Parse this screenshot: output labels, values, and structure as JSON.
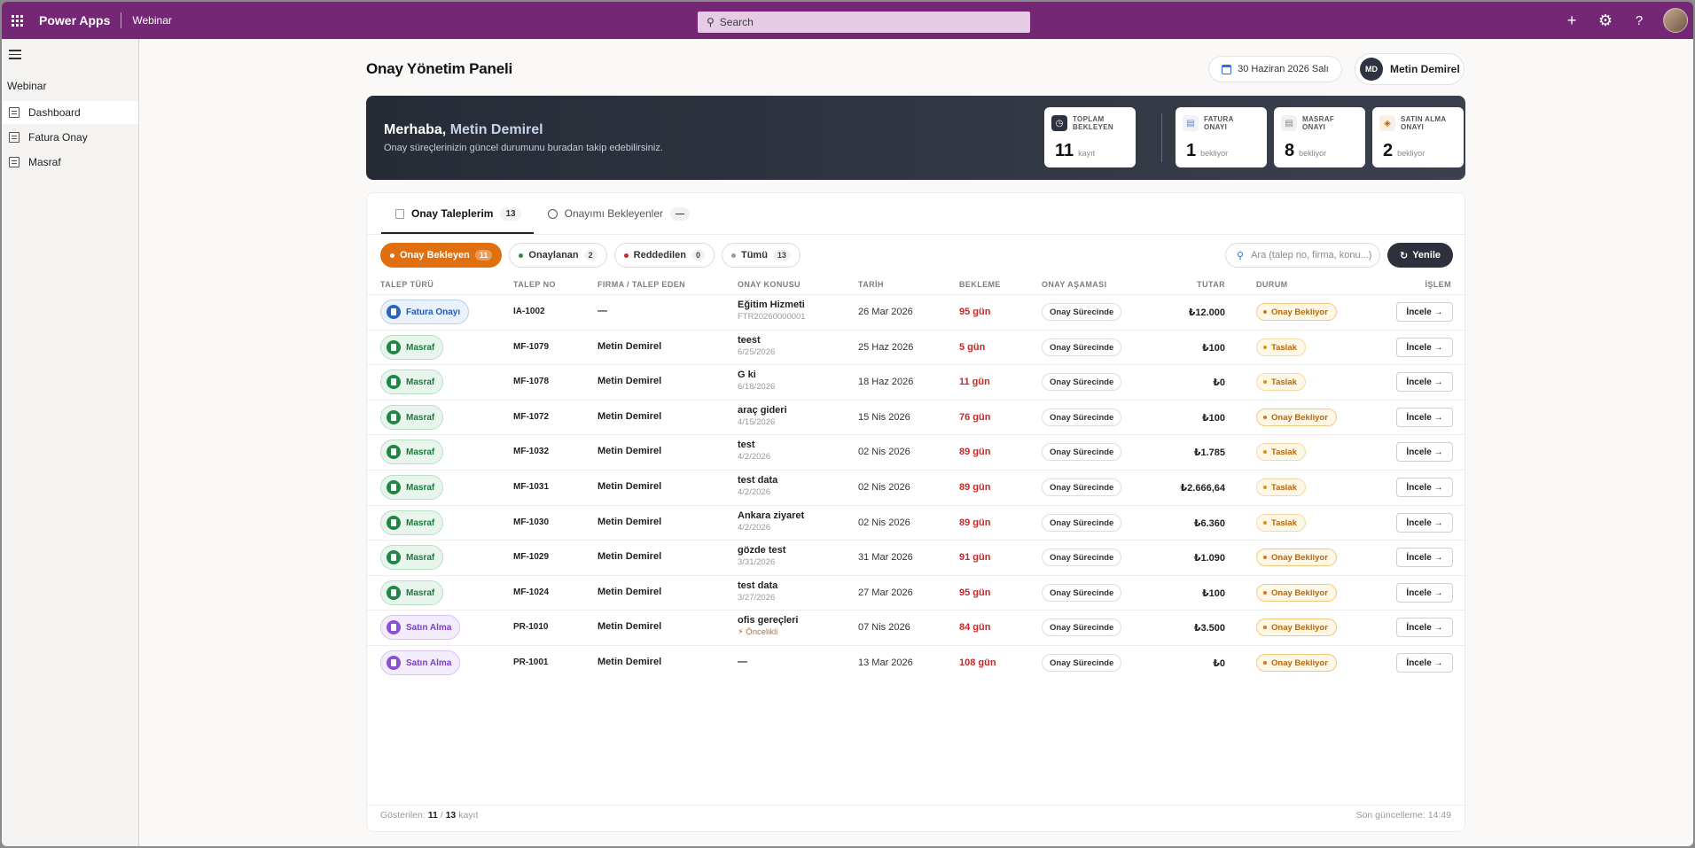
{
  "topbar": {
    "app_name": "Power Apps",
    "env_name": "Webinar",
    "search_placeholder": "Search",
    "icons": [
      "waffle-icon",
      "plus-icon",
      "gear-icon",
      "help-icon",
      "user-avatar"
    ]
  },
  "leftnav": {
    "group": "Webinar",
    "items": [
      {
        "label": "Dashboard",
        "active": true
      },
      {
        "label": "Fatura Onay",
        "active": false
      },
      {
        "label": "Masraf",
        "active": false
      }
    ]
  },
  "header": {
    "title": "Onay Yönetim Paneli",
    "date": "30 Haziran 2026 Salı",
    "user_initials": "MD",
    "user_name": "Metin Demirel"
  },
  "hero": {
    "greeting_prefix": "Merhaba,",
    "greeting_name": "Metin Demirel",
    "subtitle": "Onay süreçlerinizin güncel durumunu buradan takip edebilirsiniz.",
    "stats": [
      {
        "label1": "TOPLAM",
        "label2": "BEKLEYEN",
        "value": "11",
        "unit": "kayıt"
      },
      {
        "label1": "FATURA",
        "label2": "ONAYI",
        "value": "1",
        "unit": "bekliyor"
      },
      {
        "label1": "MASRAF",
        "label2": "ONAYI",
        "value": "8",
        "unit": "bekliyor"
      },
      {
        "label1": "SATIN ALMA",
        "label2": "ONAYI",
        "value": "2",
        "unit": "bekliyor"
      }
    ]
  },
  "tabs": [
    {
      "label": "Onay Taleplerim",
      "count": "13",
      "active": true
    },
    {
      "label": "Onayımı Bekleyenler",
      "count": "—",
      "active": false
    }
  ],
  "filters": [
    {
      "label": "Onay Bekleyen",
      "count": "11",
      "active": true,
      "color": "#e0700f"
    },
    {
      "label": "Onaylanan",
      "count": "2",
      "active": false,
      "color": "#2e8b3e"
    },
    {
      "label": "Reddedilen",
      "count": "0",
      "active": false,
      "color": "#c62828"
    },
    {
      "label": "Tümü",
      "count": "13",
      "active": false,
      "color": "#9a9a9a"
    }
  ],
  "search_placeholder": "Ara (talep no, firma, konu...)",
  "refresh_label": "Yenile",
  "columns": [
    "TALEP TÜRÜ",
    "TALEP NO",
    "FIRMA / TALEP EDEN",
    "ONAY KONUSU",
    "TARİH",
    "BEKLEME",
    "ONAY AŞAMASI",
    "TUTAR",
    "DURUM",
    "İŞLEM"
  ],
  "rows": [
    {
      "type": "Fatura Onayı",
      "kind": "fatura",
      "no": "IA-1002",
      "firma": "—",
      "konu": "Eğitim Hizmeti",
      "konu_sub": "FTR20260000001",
      "tarih": "26 Mar 2026",
      "bekleme": "95 gün",
      "asama": "Onay Sürecinde",
      "tutar": "₺12.000",
      "durum": "Onay Bekliyor",
      "durum_kind": "bekliyor",
      "action": "İncele →"
    },
    {
      "type": "Masraf",
      "kind": "masraf",
      "no": "MF-1079",
      "firma": "Metin Demirel",
      "konu": "teest",
      "konu_sub": "6/25/2026",
      "tarih": "25 Haz 2026",
      "bekleme": "5 gün",
      "asama": "Onay Sürecinde",
      "tutar": "₺100",
      "durum": "Taslak",
      "durum_kind": "taslak",
      "action": "İncele →"
    },
    {
      "type": "Masraf",
      "kind": "masraf",
      "no": "MF-1078",
      "firma": "Metin Demirel",
      "konu": "G ki",
      "konu_sub": "6/18/2026",
      "tarih": "18 Haz 2026",
      "bekleme": "11 gün",
      "asama": "Onay Sürecinde",
      "tutar": "₺0",
      "durum": "Taslak",
      "durum_kind": "taslak",
      "action": "İncele →"
    },
    {
      "type": "Masraf",
      "kind": "masraf",
      "no": "MF-1072",
      "firma": "Metin Demirel",
      "konu": "araç gideri",
      "konu_sub": "4/15/2026",
      "tarih": "15 Nis 2026",
      "bekleme": "76 gün",
      "asama": "Onay Sürecinde",
      "tutar": "₺100",
      "durum": "Onay Bekliyor",
      "durum_kind": "bekliyor",
      "action": "İncele →"
    },
    {
      "type": "Masraf",
      "kind": "masraf",
      "no": "MF-1032",
      "firma": "Metin Demirel",
      "konu": "test",
      "konu_sub": "4/2/2026",
      "tarih": "02 Nis 2026",
      "bekleme": "89 gün",
      "asama": "Onay Sürecinde",
      "tutar": "₺1.785",
      "durum": "Taslak",
      "durum_kind": "taslak",
      "action": "İncele →"
    },
    {
      "type": "Masraf",
      "kind": "masraf",
      "no": "MF-1031",
      "firma": "Metin Demirel",
      "konu": "test data",
      "konu_sub": "4/2/2026",
      "tarih": "02 Nis 2026",
      "bekleme": "89 gün",
      "asama": "Onay Sürecinde",
      "tutar": "₺2.666,64",
      "durum": "Taslak",
      "durum_kind": "taslak",
      "action": "İncele →"
    },
    {
      "type": "Masraf",
      "kind": "masraf",
      "no": "MF-1030",
      "firma": "Metin Demirel",
      "konu": "Ankara ziyaret",
      "konu_sub": "4/2/2026",
      "tarih": "02 Nis 2026",
      "bekleme": "89 gün",
      "asama": "Onay Sürecinde",
      "tutar": "₺6.360",
      "durum": "Taslak",
      "durum_kind": "taslak",
      "action": "İncele →"
    },
    {
      "type": "Masraf",
      "kind": "masraf",
      "no": "MF-1029",
      "firma": "Metin Demirel",
      "konu": "gözde test",
      "konu_sub": "3/31/2026",
      "tarih": "31 Mar 2026",
      "bekleme": "91 gün",
      "asama": "Onay Sürecinde",
      "tutar": "₺1.090",
      "durum": "Onay Bekliyor",
      "durum_kind": "bekliyor",
      "action": "İncele →"
    },
    {
      "type": "Masraf",
      "kind": "masraf",
      "no": "MF-1024",
      "firma": "Metin Demirel",
      "konu": "test data",
      "konu_sub": "3/27/2026",
      "tarih": "27 Mar 2026",
      "bekleme": "95 gün",
      "asama": "Onay Sürecinde",
      "tutar": "₺100",
      "durum": "Onay Bekliyor",
      "durum_kind": "bekliyor",
      "action": "İncele →"
    },
    {
      "type": "Satın Alma",
      "kind": "satin",
      "no": "PR-1010",
      "firma": "Metin Demirel",
      "konu": "ofis gereçleri",
      "konu_sub": "⚡ Öncelikli",
      "konu_sub_priority": true,
      "tarih": "07 Nis 2026",
      "bekleme": "84 gün",
      "asama": "Onay Sürecinde",
      "tutar": "₺3.500",
      "durum": "Onay Bekliyor",
      "durum_kind": "bekliyor",
      "action": "İncele →"
    },
    {
      "type": "Satın Alma",
      "kind": "satin",
      "no": "PR-1001",
      "firma": "Metin Demirel",
      "konu": "—",
      "konu_sub": "",
      "tarih": "13 Mar 2026",
      "bekleme": "108 gün",
      "asama": "Onay Sürecinde",
      "tutar": "₺0",
      "durum": "Onay Bekliyor",
      "durum_kind": "bekliyor",
      "action": "İncele →"
    }
  ],
  "footer": {
    "shown_label": "Gösterilen:",
    "shown": "11",
    "slash": "/",
    "total": "13",
    "unit": "kayıt",
    "last_update": "Son güncelleme: 14:49"
  }
}
